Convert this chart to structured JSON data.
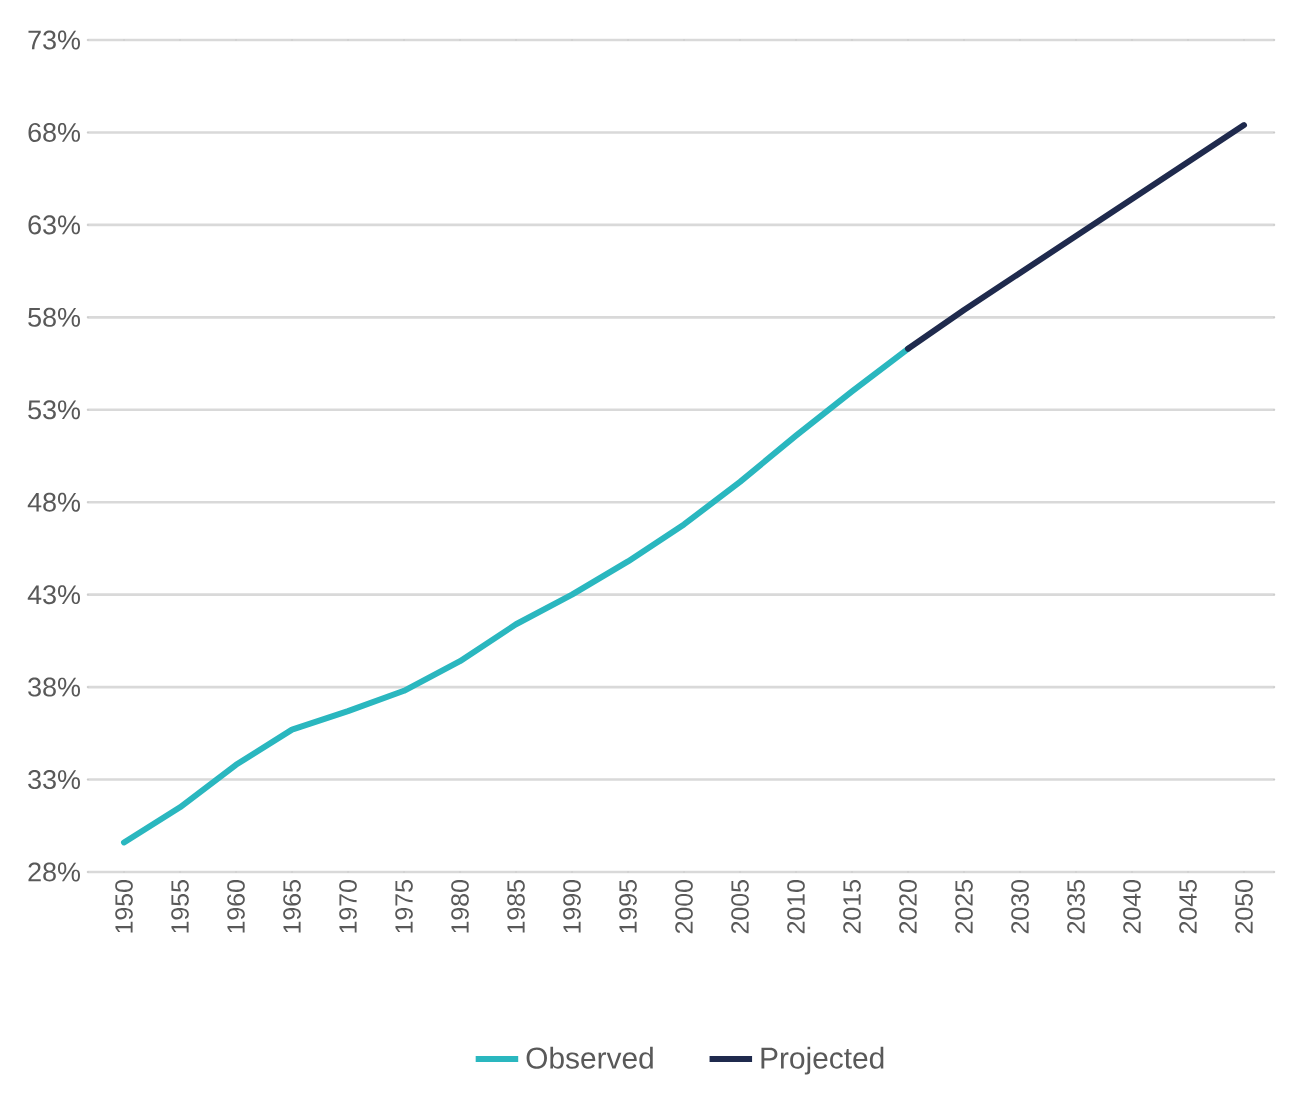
{
  "chart_data": {
    "type": "line",
    "categories": [
      "1950",
      "1955",
      "1960",
      "1965",
      "1970",
      "1975",
      "1980",
      "1985",
      "1990",
      "1995",
      "2000",
      "2005",
      "2010",
      "2015",
      "2020",
      "2025",
      "2030",
      "2035",
      "2040",
      "2045",
      "2050"
    ],
    "series": [
      {
        "name": "Observed",
        "color": "#2ab7bf",
        "values": [
          29.6,
          31.5,
          33.8,
          35.7,
          36.7,
          37.8,
          39.4,
          41.4,
          43.0,
          44.8,
          46.8,
          49.1,
          51.6,
          54.0,
          56.3,
          null,
          null,
          null,
          null,
          null,
          null
        ]
      },
      {
        "name": "Projected",
        "color": "#1f2a4d",
        "values": [
          null,
          null,
          null,
          null,
          null,
          null,
          null,
          null,
          null,
          null,
          null,
          null,
          null,
          null,
          56.3,
          58.4,
          60.4,
          62.4,
          64.4,
          66.4,
          68.4
        ]
      }
    ],
    "ylim": [
      28,
      73
    ],
    "yticks": [
      {
        "value": 28,
        "label": "28%"
      },
      {
        "value": 33,
        "label": "33%"
      },
      {
        "value": 38,
        "label": "38%"
      },
      {
        "value": 43,
        "label": "43%"
      },
      {
        "value": 48,
        "label": "48%"
      },
      {
        "value": 53,
        "label": "53%"
      },
      {
        "value": 58,
        "label": "58%"
      },
      {
        "value": 63,
        "label": "63%"
      },
      {
        "value": 68,
        "label": "68%"
      },
      {
        "value": 73,
        "label": "73%"
      }
    ],
    "grid": "y",
    "legend": "bottom"
  }
}
